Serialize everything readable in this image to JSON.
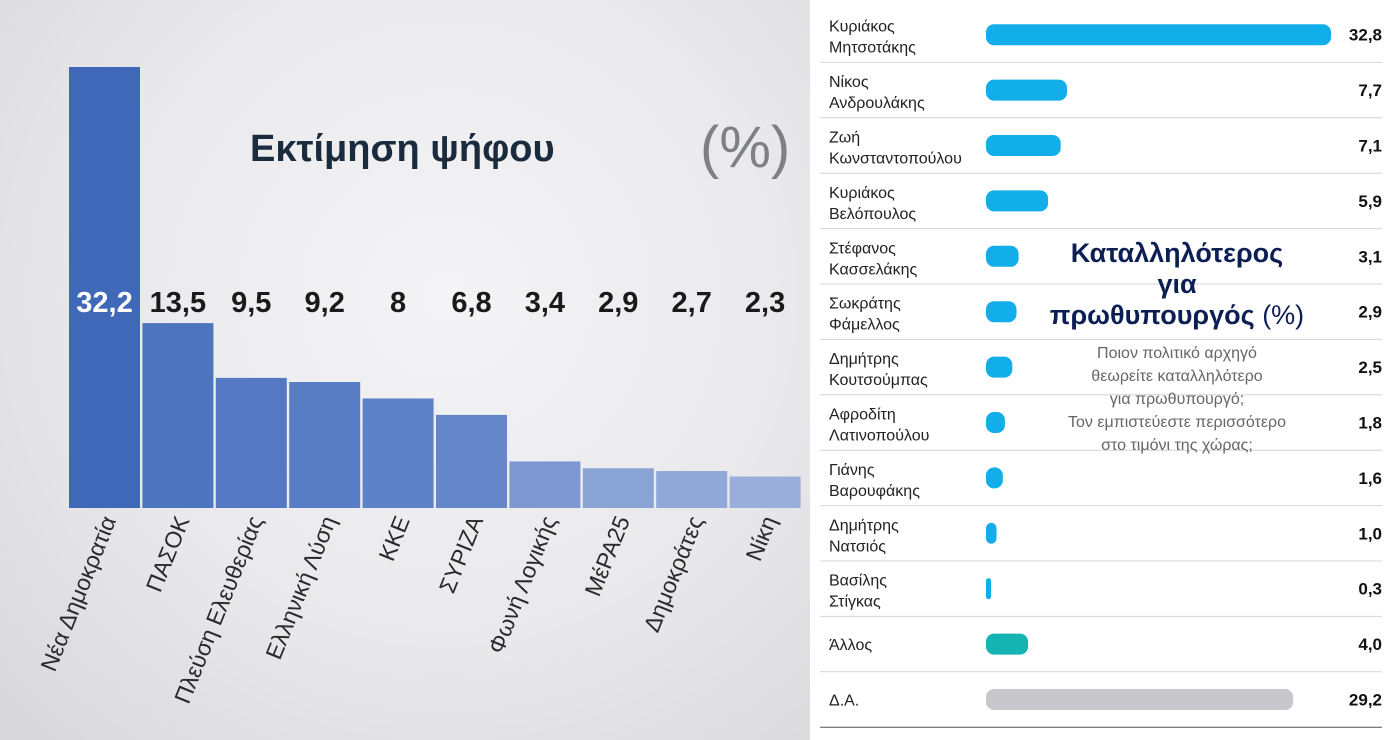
{
  "chart_data": [
    {
      "type": "bar",
      "title": "Εκτίμηση ψήφου",
      "unit": "(%)",
      "categories": [
        "Νέα Δημοκρατία",
        "ΠΑΣΟΚ",
        "Πλεύση Ελευθερίας",
        "Ελληνική Λύση",
        "ΚΚΕ",
        "ΣΥΡΙΖΑ",
        "Φωνή Λογικής",
        "ΜέΡΑ25",
        "Δημοκράτες",
        "Νίκη"
      ],
      "values": [
        32.2,
        13.5,
        9.5,
        9.2,
        8,
        6.8,
        3.4,
        2.9,
        2.7,
        2.3
      ],
      "labels": [
        "32,2",
        "13,5",
        "9,5",
        "9,2",
        "8",
        "6,8",
        "3,4",
        "2,9",
        "2,7",
        "2,3"
      ],
      "ylim": [
        0,
        32.2
      ],
      "colors": [
        "#3f68b8",
        "#4d74bf",
        "#5479c2",
        "#587dc4",
        "#5e82c7",
        "#6587ca",
        "#7d98d0",
        "#8aa3d5",
        "#90a8d8",
        "#99aedb"
      ],
      "grid": false
    },
    {
      "type": "bar",
      "orientation": "horizontal",
      "title": "Καταλληλότερος για πρωθυπουργός",
      "unit": "(%)",
      "title_lines": [
        "Καταλληλότερος",
        "για",
        "πρωθυπουργός"
      ],
      "subtitle_lines": [
        "Ποιον πολιτικό αρχηγό",
        "θεωρείτε καταλληλότερο",
        "για πρωθυπουργό;",
        "Τον εμπιστεύεστε περισσότερο",
        "στο τιμόνι της χώρας;"
      ],
      "rows": [
        {
          "name": [
            "Κυριάκος",
            "Μητσοτάκης"
          ],
          "value": 32.8,
          "label": "32,8",
          "color": "#12aeea"
        },
        {
          "name": [
            "Νίκος",
            "Ανδρουλάκης"
          ],
          "value": 7.7,
          "label": "7,7",
          "color": "#12aeea"
        },
        {
          "name": [
            "Ζωή",
            "Κωνσταντοπούλου"
          ],
          "value": 7.1,
          "label": "7,1",
          "color": "#12aeea"
        },
        {
          "name": [
            "Κυριάκος",
            "Βελόπουλος"
          ],
          "value": 5.9,
          "label": "5,9",
          "color": "#12aeea"
        },
        {
          "name": [
            "Στέφανος",
            "Κασσελάκης"
          ],
          "value": 3.1,
          "label": "3,1",
          "color": "#12aeea"
        },
        {
          "name": [
            "Σωκράτης",
            "Φάμελλος"
          ],
          "value": 2.9,
          "label": "2,9",
          "color": "#12aeea"
        },
        {
          "name": [
            "Δημήτρης",
            "Κουτσούμπας"
          ],
          "value": 2.5,
          "label": "2,5",
          "color": "#12aeea"
        },
        {
          "name": [
            "Αφροδίτη",
            "Λατινοπούλου"
          ],
          "value": 1.8,
          "label": "1,8",
          "color": "#12aeea"
        },
        {
          "name": [
            "Γιάνης",
            "Βαρουφάκης"
          ],
          "value": 1.6,
          "label": "1,6",
          "color": "#12aeea"
        },
        {
          "name": [
            "Δημήτρης",
            "Νατσιός"
          ],
          "value": 1.0,
          "label": "1,0",
          "color": "#12aeea"
        },
        {
          "name": [
            "Βασίλης",
            "Στίγκας"
          ],
          "value": 0.3,
          "label": "0,3",
          "color": "#12aeea"
        },
        {
          "name": [
            "Άλλος"
          ],
          "value": 4.0,
          "label": "4,0",
          "color": "#15b3b2"
        },
        {
          "name": [
            "Δ.Α."
          ],
          "value": 29.2,
          "label": "29,2",
          "color": "#c8c8cc"
        }
      ],
      "xlim": [
        0,
        32.8
      ],
      "grid": false
    }
  ]
}
